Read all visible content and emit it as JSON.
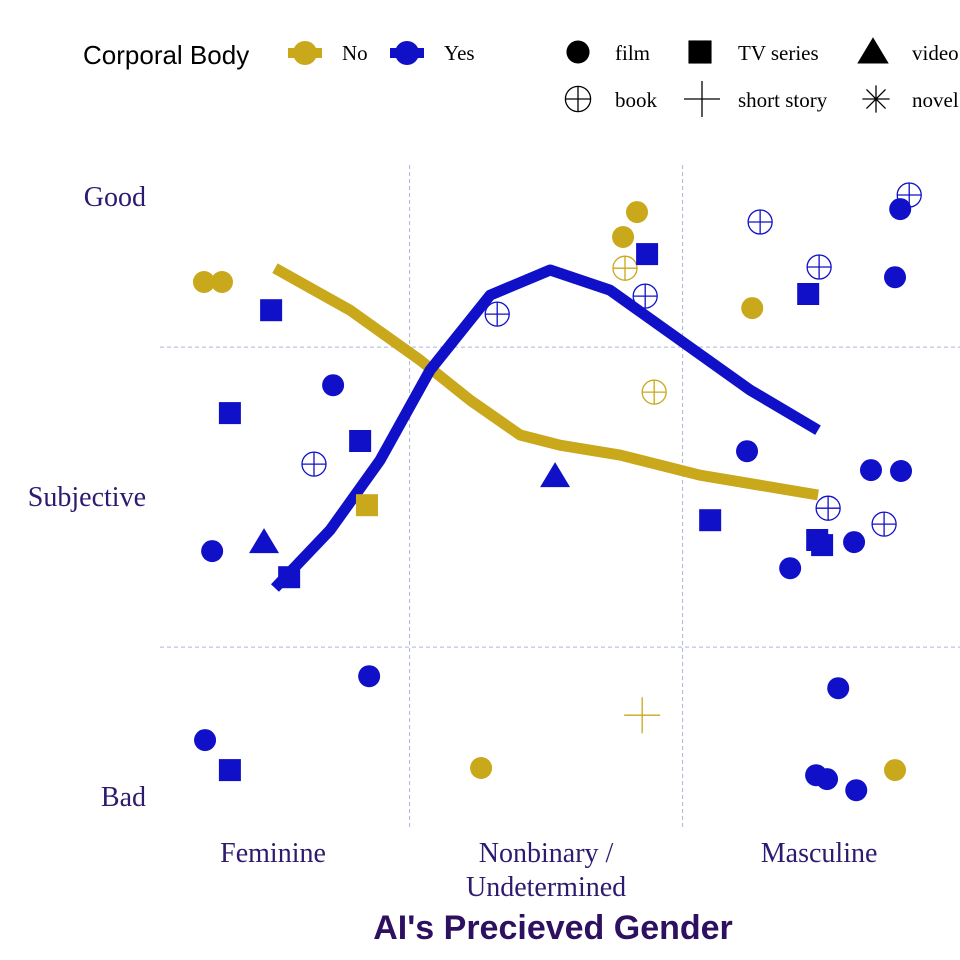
{
  "chart_data": {
    "type": "scatter",
    "x_label": "AI's Precieved Gender",
    "xlim": [
      0.586,
      3.516
    ],
    "ylim": [
      0.897,
      3.107
    ],
    "xticks": [
      {
        "value": 1,
        "label": "Feminine"
      },
      {
        "value": 2,
        "label": "Nonbinary /\nUndetermined"
      },
      {
        "value": 3,
        "label": "Masculine"
      }
    ],
    "yticks": [
      {
        "value": 1,
        "label": "Bad"
      },
      {
        "value": 2,
        "label": "Subjective"
      },
      {
        "value": 3,
        "label": "Good"
      }
    ],
    "x_grid_at": [
      1.5,
      2.5
    ],
    "y_grid_at": [
      1.5,
      2.5
    ],
    "legend_title": "Corporal Body",
    "shape_legend": [
      {
        "name": "film",
        "shape": "circle"
      },
      {
        "name": "TV series",
        "shape": "square"
      },
      {
        "name": "video game",
        "shape": "triangle"
      },
      {
        "name": "book",
        "shape": "circle-plus"
      },
      {
        "name": "short story",
        "shape": "plus"
      },
      {
        "name": "novel",
        "shape": "asterisk"
      }
    ],
    "series": [
      {
        "name": "No",
        "color": "#C9A81B",
        "x": [
          0.747,
          0.813,
          2.333,
          2.282,
          2.755,
          1.762,
          3.278,
          1.344,
          2.289,
          2.396,
          2.352
        ],
        "y": [
          2.717,
          2.717,
          2.95,
          2.867,
          2.63,
          1.097,
          1.09,
          1.973,
          2.763,
          2.35,
          1.273
        ],
        "shape": [
          "circle",
          "circle",
          "circle",
          "circle",
          "circle",
          "circle",
          "circle",
          "square",
          "circle-plus",
          "circle-plus",
          "plus"
        ],
        "trend_x": [
          1.007,
          1.282,
          1.538,
          1.722,
          1.905,
          2.051,
          2.271,
          2.564,
          2.996
        ],
        "trend_y": [
          2.763,
          2.623,
          2.457,
          2.323,
          2.207,
          2.173,
          2.14,
          2.073,
          2.007
        ]
      },
      {
        "name": "Yes",
        "color": "#1010C8",
        "x": [
          1.22,
          0.777,
          1.352,
          0.751,
          2.736,
          3.19,
          3.3,
          3.128,
          2.894,
          3.297,
          3.278,
          3.07,
          2.989,
          3.029,
          3.136,
          0.993,
          0.842,
          1.319,
          1.059,
          0.842,
          2.37,
          2.96,
          2.601,
          2.993,
          3.011,
          0.967,
          2.033,
          1.15,
          1.821,
          2.363,
          2.784,
          3.0,
          3.33,
          3.033,
          3.238
        ],
        "y": [
          2.373,
          1.82,
          1.403,
          1.19,
          2.153,
          2.09,
          2.087,
          1.85,
          1.763,
          2.96,
          2.733,
          1.363,
          1.073,
          1.06,
          1.023,
          2.623,
          2.28,
          2.187,
          1.733,
          1.09,
          2.81,
          2.677,
          1.923,
          1.857,
          1.84,
          1.85,
          2.07,
          2.11,
          2.61,
          2.67,
          2.917,
          2.767,
          3.007,
          1.963,
          1.91
        ],
        "shape": [
          "circle",
          "circle",
          "circle",
          "circle",
          "circle",
          "circle",
          "circle",
          "circle",
          "circle",
          "circle",
          "circle",
          "circle",
          "circle",
          "circle",
          "circle",
          "square",
          "square",
          "square",
          "square",
          "square",
          "square",
          "square",
          "square",
          "square",
          "square",
          "triangle",
          "triangle",
          "circle-plus",
          "circle-plus",
          "circle-plus",
          "circle-plus",
          "circle-plus",
          "circle-plus",
          "circle-plus",
          "circle-plus"
        ],
        "trend_x": [
          1.007,
          1.209,
          1.392,
          1.575,
          1.795,
          2.015,
          2.234,
          2.491,
          2.747,
          2.996
        ],
        "trend_y": [
          1.697,
          1.89,
          2.123,
          2.423,
          2.673,
          2.757,
          2.69,
          2.523,
          2.357,
          2.223
        ]
      }
    ]
  }
}
